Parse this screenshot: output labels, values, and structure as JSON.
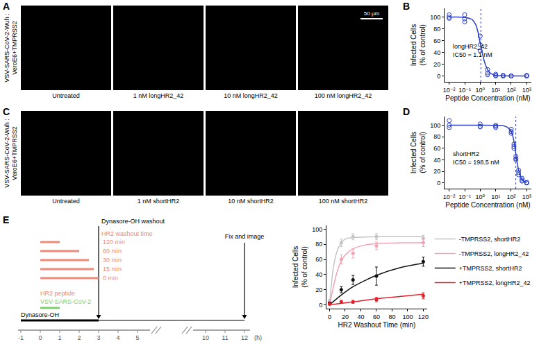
{
  "panel_labels": [
    "A",
    "B",
    "C",
    "D",
    "E"
  ],
  "image_rows": [
    {
      "ylabel": [
        "VSV-SARS-CoV-2-Wuh :",
        "VeroE6+TMPRSS2"
      ],
      "captions": [
        "Untreated",
        "1 nM longHR2_42",
        "10 nM longHR2_42",
        "100 nM longHR2_42"
      ],
      "scale_bar": "50 µm"
    },
    {
      "ylabel": [
        "VSV-SARS-CoV-2-Wuh :",
        "VeroE6+TMPRSS2"
      ],
      "captions": [
        "Untreated",
        "1 nM shortHR2",
        "10 nM shortHR2",
        "100 nM shortHR2"
      ]
    }
  ],
  "diagram": {
    "timeline_ticks": [
      -1,
      0,
      1,
      2,
      3,
      4,
      5,
      10,
      11,
      12
    ],
    "break_after": 5,
    "axis_unit": "(h)",
    "dynasore": {
      "label": "Dynasore-OH",
      "start": -1,
      "end": 3
    },
    "washout": {
      "label": "Dynasore-OH washout",
      "time": 3
    },
    "hr2_title": "HR2 washout time",
    "hr2_bars": [
      {
        "label": "120 min",
        "start": 0,
        "end": 1
      },
      {
        "label": "60 min",
        "start": 0,
        "end": 2
      },
      {
        "label": "30 min",
        "start": 0,
        "end": 2.5
      },
      {
        "label": "15 min",
        "start": 0,
        "end": 2.75
      },
      {
        "label": "0 min",
        "start": 0,
        "end": 3
      }
    ],
    "hr2_label": "HR2 peptide",
    "virus": {
      "label": "VSV-SARS-CoV-2",
      "start": 0,
      "end": 1
    },
    "fix": {
      "label": "Fix and image",
      "time": 12
    }
  },
  "chart_data": [
    {
      "type": "scatter",
      "x_label": "Peptide Concentration (nM)",
      "y_label": [
        "Infected Cells",
        "(% of control)"
      ],
      "annotation": [
        "longHR2_42",
        "IC50 = 1.1 nM"
      ],
      "ic50": 1.1,
      "log": "x",
      "grid": false,
      "color": "#2b3fc4",
      "xlim": [
        0.005,
        2000
      ],
      "xticks": [
        {
          "value": 0.01,
          "label": "10⁻²"
        },
        {
          "value": 0.1,
          "label": "10⁻¹"
        },
        {
          "value": 1,
          "label": "10⁰"
        },
        {
          "value": 10,
          "label": "10¹"
        },
        {
          "value": 100,
          "label": "10²"
        },
        {
          "value": 1000,
          "label": "10³"
        }
      ],
      "ylim": [
        -10,
        115
      ],
      "yticks": [
        0,
        20,
        40,
        60,
        80,
        100
      ],
      "series": [
        {
          "type": "scatter",
          "marker": "circle-open",
          "x": [
            0.01,
            0.01,
            0.01,
            0.1,
            0.1,
            0.1,
            1,
            1,
            1,
            3,
            3,
            3,
            10,
            10,
            10,
            30,
            30,
            30,
            100,
            100,
            100,
            1000,
            1000,
            1000
          ],
          "values": [
            104,
            100,
            98,
            104,
            97,
            92,
            68,
            53,
            43,
            11,
            5,
            2,
            3,
            1,
            0,
            1,
            0,
            0,
            0,
            0,
            0,
            0,
            1,
            0
          ]
        },
        {
          "type": "line",
          "line_style": "solid",
          "x": [
            0.01,
            0.1,
            0.3,
            0.5,
            0.7,
            0.9,
            1.1,
            1.4,
            1.8,
            2.5,
            3.5,
            5,
            10,
            30,
            100,
            1000
          ],
          "values": [
            100,
            99.5,
            96,
            88,
            76,
            62,
            50,
            38,
            26,
            15,
            8,
            4,
            1,
            0.2,
            0,
            0
          ]
        }
      ]
    },
    {
      "type": "scatter",
      "x_label": "Peptide Concentration (nM)",
      "y_label": [
        "Infected Cells",
        "(% of control)"
      ],
      "annotation": [
        "shortHR2",
        "IC50 = 198.5 nM"
      ],
      "ic50": 198.5,
      "log": "x",
      "grid": false,
      "color": "#2b3fc4",
      "xlim": [
        0.005,
        2000
      ],
      "xticks": [
        {
          "value": 0.01,
          "label": "10⁻²"
        },
        {
          "value": 0.1,
          "label": "10⁻¹"
        },
        {
          "value": 1,
          "label": "10⁰"
        },
        {
          "value": 10,
          "label": "10¹"
        },
        {
          "value": 100,
          "label": "10²"
        },
        {
          "value": 1000,
          "label": "10³"
        }
      ],
      "ylim": [
        -10,
        115
      ],
      "yticks": [
        0,
        20,
        40,
        60,
        80,
        100
      ],
      "series": [
        {
          "type": "scatter",
          "marker": "circle-open",
          "x": [
            0.01,
            0.01,
            0.01,
            1,
            1,
            1,
            10,
            10,
            10,
            100,
            100,
            100,
            150,
            150,
            150,
            200,
            200,
            200,
            300,
            300,
            300,
            500,
            500,
            500,
            1000,
            1000,
            1000
          ],
          "values": [
            108,
            100,
            96,
            102,
            98,
            97,
            100,
            98,
            96,
            93,
            89,
            86,
            67,
            63,
            60,
            46,
            42,
            40,
            22,
            18,
            14,
            8,
            5,
            3,
            1,
            0,
            0
          ]
        },
        {
          "type": "line",
          "line_style": "solid",
          "x": [
            0.01,
            1,
            10,
            30,
            60,
            100,
            130,
            160,
            198.5,
            240,
            300,
            400,
            500,
            700,
            1000
          ],
          "values": [
            100,
            100,
            99.8,
            99,
            96,
            89,
            80,
            68,
            50,
            36,
            22,
            11,
            6,
            2,
            0.6
          ]
        }
      ]
    },
    {
      "type": "line",
      "x_label": "HR2 Washout Time (min)",
      "y_label": [
        "Infected Cells",
        "(% of control)"
      ],
      "grid": false,
      "legend": "right",
      "xlim": [
        -4,
        125
      ],
      "xticks": [
        0,
        20,
        40,
        60,
        80,
        100,
        120
      ],
      "ylim": [
        -5,
        105
      ],
      "yticks": [
        0,
        20,
        40,
        60,
        80,
        100
      ],
      "series": [
        {
          "name": "-TMPRSS2, shortHR2",
          "color": "#c4c4c4",
          "marker": "circle",
          "x": [
            0,
            15,
            30,
            60,
            120
          ],
          "values": [
            5,
            82,
            90,
            90,
            88
          ],
          "errors": [
            2,
            5,
            4,
            4,
            4
          ],
          "fit_x": [
            0,
            5,
            10,
            15,
            20,
            30,
            60,
            120
          ],
          "fit_values": [
            0,
            50,
            72,
            82,
            87,
            89,
            90,
            90
          ]
        },
        {
          "name": "-TMPRSS2, longHR2_42",
          "color": "#f4a3b4",
          "marker": "circle",
          "x": [
            0,
            15,
            30,
            60,
            120
          ],
          "values": [
            3,
            60,
            68,
            78,
            82
          ],
          "errors": [
            2,
            6,
            6,
            5,
            5
          ],
          "fit_x": [
            0,
            10,
            15,
            20,
            30,
            45,
            60,
            90,
            120
          ],
          "fit_values": [
            0,
            45,
            58,
            66,
            74,
            79,
            81,
            82,
            82
          ]
        },
        {
          "name": "+TMPRSS2, shortHR2",
          "color": "#111111",
          "marker": "circle",
          "x": [
            0,
            15,
            30,
            60,
            120
          ],
          "values": [
            2,
            20,
            33,
            38,
            57
          ],
          "errors": [
            1,
            4,
            6,
            12,
            6
          ],
          "fit_x": [
            0,
            15,
            30,
            45,
            60,
            90,
            120
          ],
          "fit_values": [
            0,
            13,
            24,
            32,
            39,
            49,
            55
          ]
        },
        {
          "name": "+TMPRSS2, longHR2_42",
          "color": "#e3202a",
          "marker": "circle",
          "x": [
            0,
            15,
            30,
            60,
            120
          ],
          "values": [
            1,
            4,
            4,
            7,
            12
          ],
          "errors": [
            1,
            2,
            2,
            3,
            4
          ],
          "fit_x": [
            0,
            30,
            60,
            90,
            120
          ],
          "fit_values": [
            0,
            4,
            8,
            11,
            14
          ]
        }
      ]
    }
  ]
}
